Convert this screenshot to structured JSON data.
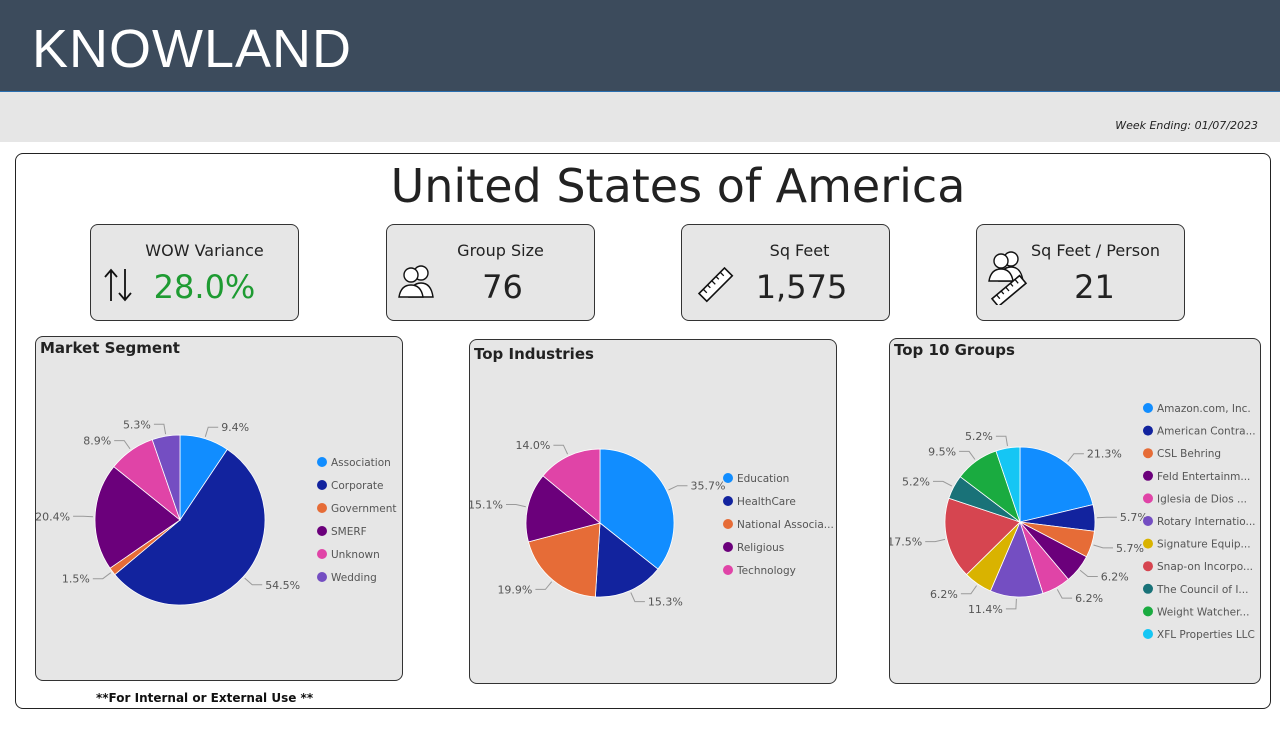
{
  "header": {
    "logo": "KNOWLAND"
  },
  "subheader": {
    "week_ending": "Week Ending: 01/07/2023"
  },
  "country": "United States of America",
  "kpis": [
    {
      "title": "WOW Variance",
      "value": "28.0%",
      "icon": "up-down-arrows-icon",
      "color": "#1e9b32"
    },
    {
      "title": "Group Size",
      "value": "76",
      "icon": "people-icon",
      "color": "#222222"
    },
    {
      "title": "Sq Feet",
      "value": "1,575",
      "icon": "ruler-icon",
      "color": "#222222"
    },
    {
      "title": "Sq Feet / Person",
      "value": "21",
      "icon": "people-ruler-icon",
      "color": "#222222"
    }
  ],
  "footnote": "**For Internal or External Use **",
  "chart_data": [
    {
      "type": "pie",
      "title": "Market Segment",
      "slices": [
        {
          "name": "Association",
          "value": 9.4,
          "label": "9.4%",
          "color": "#118dff"
        },
        {
          "name": "Corporate",
          "value": 54.5,
          "label": "54.5%",
          "color": "#12239e"
        },
        {
          "name": "Government",
          "value": 1.5,
          "label": "1.5%",
          "color": "#e66c37"
        },
        {
          "name": "SMERF",
          "value": 20.4,
          "label": "20.4%",
          "color": "#6b007b"
        },
        {
          "name": "Unknown",
          "value": 8.9,
          "label": "8.9%",
          "color": "#e044a7"
        },
        {
          "name": "Wedding",
          "value": 5.3,
          "label": "5.3%",
          "color": "#744ec2"
        }
      ]
    },
    {
      "type": "pie",
      "title": "Top Industries",
      "slices": [
        {
          "name": "Education",
          "value": 35.7,
          "label": "35.7%",
          "color": "#118dff"
        },
        {
          "name": "HealthCare",
          "value": 15.3,
          "label": "15.3%",
          "color": "#12239e"
        },
        {
          "name": "National Associa...",
          "value": 19.9,
          "label": "19.9%",
          "color": "#e66c37"
        },
        {
          "name": "Religious",
          "value": 15.1,
          "label": "15.1%",
          "color": "#6b007b"
        },
        {
          "name": "Technology",
          "value": 14.0,
          "label": "14.0%",
          "color": "#e044a7"
        }
      ]
    },
    {
      "type": "pie",
      "title": "Top 10 Groups",
      "slices": [
        {
          "name": "Amazon.com, Inc.",
          "value": 21.3,
          "label": "21.3%",
          "color": "#118dff"
        },
        {
          "name": "American Contra...",
          "value": 5.7,
          "label": "5.7%",
          "color": "#12239e"
        },
        {
          "name": "CSL Behring",
          "value": 5.7,
          "label": "5.7%",
          "color": "#e66c37"
        },
        {
          "name": "Feld Entertainm...",
          "value": 6.2,
          "label": "6.2%",
          "color": "#6b007b"
        },
        {
          "name": "Iglesia de Dios ...",
          "value": 6.2,
          "label": "6.2%",
          "color": "#e044a7"
        },
        {
          "name": "Rotary Internatio...",
          "value": 11.4,
          "label": "11.4%",
          "color": "#744ec2"
        },
        {
          "name": "Signature Equip...",
          "value": 6.2,
          "label": "6.2%",
          "color": "#d9b300"
        },
        {
          "name": "Snap-on Incorpo...",
          "value": 17.5,
          "label": "17.5%",
          "color": "#d64550"
        },
        {
          "name": "The Council of I...",
          "value": 5.2,
          "label": "5.2%",
          "color": "#197278"
        },
        {
          "name": "Weight Watcher...",
          "value": 9.5,
          "label": "9.5%",
          "color": "#1aab40"
        },
        {
          "name": "XFL Properties LLC",
          "value": 5.2,
          "label": "5.2%",
          "color": "#15c6f4"
        }
      ]
    }
  ]
}
